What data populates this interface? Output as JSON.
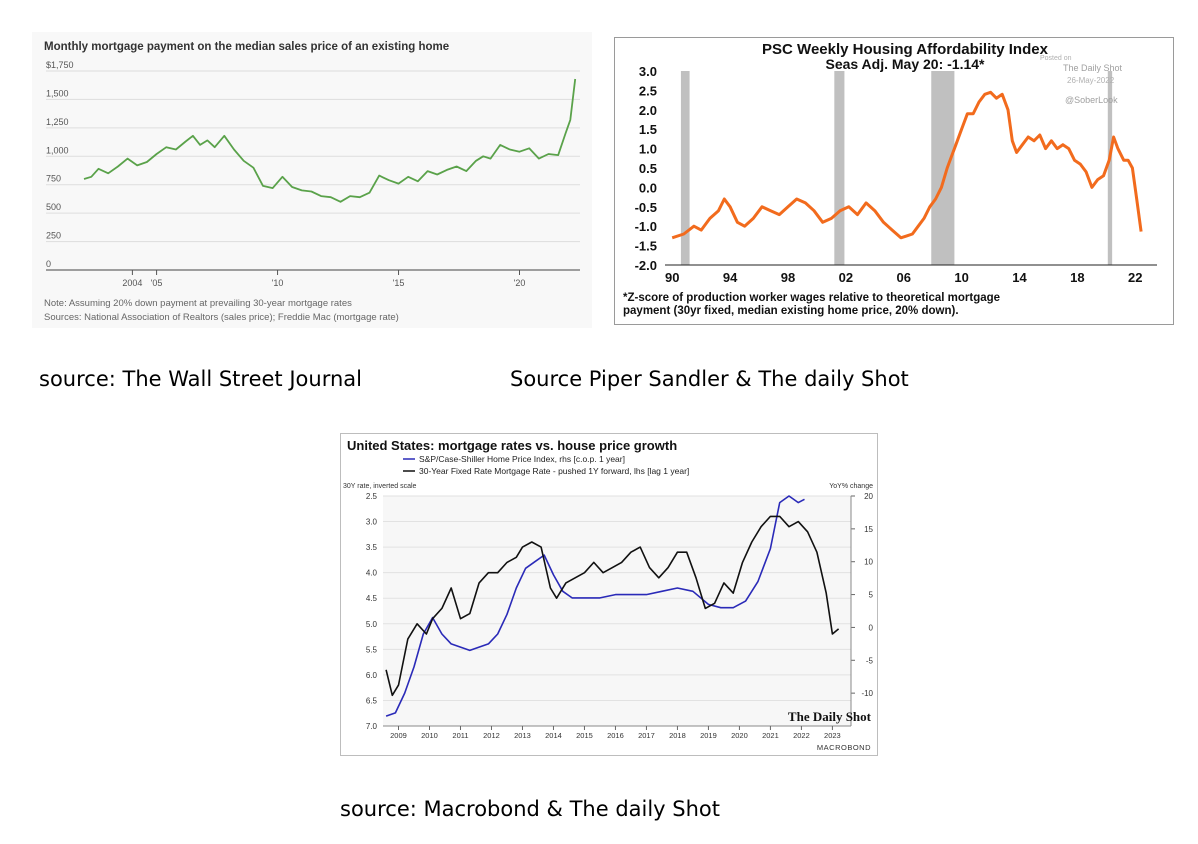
{
  "captions": {
    "wsj": "source: The Wall Street Journal",
    "psc": "Source Piper Sandler & The daily Shot",
    "macrobond": "source: Macrobond & The daily Shot"
  },
  "colors": {
    "wsj_line": "#5aa24a",
    "psc_line": "#f26b1d",
    "psc_shade": "#c0c0c0",
    "mb_blue": "#2a2ab8",
    "mb_black": "#111111"
  },
  "chart_data": [
    {
      "id": "wsj",
      "type": "line",
      "title": "Monthly mortgage payment on the median sales price of an existing home",
      "ylim": [
        0,
        1750
      ],
      "yticks": [
        {
          "v": 0,
          "label": "0"
        },
        {
          "v": 250,
          "label": "250"
        },
        {
          "v": 500,
          "label": "500"
        },
        {
          "v": 750,
          "label": "750"
        },
        {
          "v": 1000,
          "label": "1,000"
        },
        {
          "v": 1250,
          "label": "1,250"
        },
        {
          "v": 1500,
          "label": "1,500"
        },
        {
          "v": 1750,
          "label": "$1,750"
        }
      ],
      "xlim": [
        2002,
        2022.5
      ],
      "xticks": [
        {
          "v": 2004,
          "label": "2004"
        },
        {
          "v": 2005,
          "label": "'05"
        },
        {
          "v": 2010,
          "label": "'10"
        },
        {
          "v": 2015,
          "label": "'15"
        },
        {
          "v": 2020,
          "label": "'20"
        }
      ],
      "grid": true,
      "series": [
        {
          "x": [
            2002.0,
            2002.3,
            2002.6,
            2003.0,
            2003.4,
            2003.8,
            2004.2,
            2004.6,
            2005.0,
            2005.4,
            2005.8,
            2006.2,
            2006.5,
            2006.8,
            2007.1,
            2007.4,
            2007.8,
            2008.2,
            2008.6,
            2009.0,
            2009.4,
            2009.8,
            2010.2,
            2010.6,
            2011.0,
            2011.4,
            2011.8,
            2012.2,
            2012.6,
            2013.0,
            2013.4,
            2013.8,
            2014.2,
            2014.6,
            2015.0,
            2015.4,
            2015.8,
            2016.2,
            2016.6,
            2017.0,
            2017.4,
            2017.8,
            2018.2,
            2018.5,
            2018.8,
            2019.2,
            2019.6,
            2020.0,
            2020.4,
            2020.8,
            2021.2,
            2021.6,
            2021.9,
            2022.1,
            2022.3
          ],
          "y": [
            800,
            820,
            890,
            850,
            910,
            980,
            920,
            950,
            1020,
            1080,
            1060,
            1130,
            1180,
            1100,
            1140,
            1080,
            1180,
            1060,
            960,
            900,
            740,
            720,
            820,
            730,
            700,
            690,
            650,
            640,
            600,
            650,
            640,
            680,
            830,
            790,
            760,
            820,
            780,
            870,
            840,
            880,
            910,
            870,
            960,
            1000,
            980,
            1100,
            1060,
            1040,
            1070,
            980,
            1020,
            1010,
            1200,
            1320,
            1680
          ]
        }
      ],
      "notes": [
        "Note: Assuming 20% down payment at prevailing 30-year mortgage rates",
        "Sources: National Association of Realtors (sales price); Freddie Mac (mortgage rate)"
      ]
    },
    {
      "id": "psc",
      "type": "line",
      "title": "PSC Weekly Housing Affordability Index",
      "subtitle": "Seas Adj.  May 20: -1.14*",
      "watermark": [
        "Posted on",
        "The Daily Shot",
        "26-May-2022",
        "@SoberLook"
      ],
      "ylim": [
        -2.0,
        3.0
      ],
      "yticks": [
        {
          "v": 3.0,
          "label": "3.0"
        },
        {
          "v": 2.5,
          "label": "2.5"
        },
        {
          "v": 2.0,
          "label": "2.0"
        },
        {
          "v": 1.5,
          "label": "1.5"
        },
        {
          "v": 1.0,
          "label": "1.0"
        },
        {
          "v": 0.5,
          "label": "0.5"
        },
        {
          "v": 0.0,
          "label": "0.0"
        },
        {
          "v": -0.5,
          "label": "-0.5"
        },
        {
          "v": -1.0,
          "label": "-1.0"
        },
        {
          "v": -1.5,
          "label": "-1.5"
        },
        {
          "v": -2.0,
          "label": "-2.0"
        }
      ],
      "xlim": [
        1989.5,
        2023.5
      ],
      "xticks": [
        {
          "v": 1990,
          "label": "90"
        },
        {
          "v": 1994,
          "label": "94"
        },
        {
          "v": 1998,
          "label": "98"
        },
        {
          "v": 2002,
          "label": "02"
        },
        {
          "v": 2006,
          "label": "06"
        },
        {
          "v": 2010,
          "label": "10"
        },
        {
          "v": 2014,
          "label": "14"
        },
        {
          "v": 2018,
          "label": "18"
        },
        {
          "v": 2022,
          "label": "22"
        }
      ],
      "recessions": [
        [
          1990.6,
          1991.2
        ],
        [
          2001.2,
          2001.9
        ],
        [
          2007.9,
          2009.5
        ],
        [
          2020.1,
          2020.4
        ]
      ],
      "series": [
        {
          "x": [
            1990.0,
            1990.8,
            1991.5,
            1992.0,
            1992.6,
            1993.2,
            1993.6,
            1994.0,
            1994.5,
            1995.0,
            1995.6,
            1996.2,
            1996.8,
            1997.4,
            1998.0,
            1998.6,
            1999.2,
            1999.8,
            2000.4,
            2001.0,
            2001.6,
            2002.2,
            2002.8,
            2003.4,
            2004.0,
            2004.6,
            2005.2,
            2005.8,
            2006.2,
            2006.6,
            2007.0,
            2007.4,
            2007.8,
            2008.2,
            2008.6,
            2009.0,
            2009.3,
            2009.6,
            2010.0,
            2010.4,
            2010.8,
            2011.2,
            2011.6,
            2012.0,
            2012.4,
            2012.8,
            2013.2,
            2013.5,
            2013.8,
            2014.2,
            2014.6,
            2015.0,
            2015.4,
            2015.8,
            2016.2,
            2016.6,
            2017.0,
            2017.4,
            2017.8,
            2018.2,
            2018.6,
            2019.0,
            2019.4,
            2019.8,
            2020.2,
            2020.5,
            2020.8,
            2021.2,
            2021.5,
            2021.8,
            2022.1,
            2022.4
          ],
          "y": [
            -1.3,
            -1.2,
            -1.0,
            -1.1,
            -0.8,
            -0.6,
            -0.3,
            -0.5,
            -0.9,
            -1.0,
            -0.8,
            -0.5,
            -0.6,
            -0.7,
            -0.5,
            -0.3,
            -0.4,
            -0.6,
            -0.9,
            -0.8,
            -0.6,
            -0.5,
            -0.7,
            -0.4,
            -0.6,
            -0.9,
            -1.1,
            -1.3,
            -1.25,
            -1.2,
            -1.0,
            -0.8,
            -0.5,
            -0.3,
            0.0,
            0.5,
            0.8,
            1.1,
            1.5,
            1.9,
            1.9,
            2.2,
            2.4,
            2.45,
            2.3,
            2.4,
            2.0,
            1.2,
            0.9,
            1.1,
            1.3,
            1.2,
            1.35,
            1.0,
            1.2,
            1.0,
            1.1,
            1.0,
            0.7,
            0.6,
            0.4,
            0.0,
            0.2,
            0.3,
            0.7,
            1.3,
            1.0,
            0.7,
            0.7,
            0.5,
            -0.3,
            -1.14
          ]
        }
      ],
      "footnote": [
        "*Z-score of production worker wages relative to theoretical mortgage",
        "payment (30yr fixed, median existing home price, 20% down)."
      ]
    },
    {
      "id": "macrobond",
      "type": "line",
      "title": "United States: mortgage rates vs. house price growth",
      "left_axis_label": "30Y rate, inverted scale",
      "right_axis_label": "YoY% change",
      "brand": "The Daily Shot",
      "source": "MACROBOND",
      "ylim_left": [
        7.0,
        2.5
      ],
      "ylim_right": [
        -15,
        20
      ],
      "xlim": [
        2008.5,
        2023.6
      ],
      "yticks_left": [
        {
          "v": 2.5,
          "label": "2.5"
        },
        {
          "v": 3.0,
          "label": "3.0"
        },
        {
          "v": 3.5,
          "label": "3.5"
        },
        {
          "v": 4.0,
          "label": "4.0"
        },
        {
          "v": 4.5,
          "label": "4.5"
        },
        {
          "v": 5.0,
          "label": "5.0"
        },
        {
          "v": 5.5,
          "label": "5.5"
        },
        {
          "v": 6.0,
          "label": "6.0"
        },
        {
          "v": 6.5,
          "label": "6.5"
        },
        {
          "v": 7.0,
          "label": "7.0"
        }
      ],
      "yticks_right": [
        {
          "v": 20,
          "label": "20"
        },
        {
          "v": 15,
          "label": "15"
        },
        {
          "v": 10,
          "label": "10"
        },
        {
          "v": 5,
          "label": "5"
        },
        {
          "v": 0,
          "label": "0"
        },
        {
          "v": -5,
          "label": "-5"
        },
        {
          "v": -10,
          "label": "-10"
        }
      ],
      "xticks": [
        {
          "v": 2009,
          "label": "2009"
        },
        {
          "v": 2010,
          "label": "2010"
        },
        {
          "v": 2011,
          "label": "2011"
        },
        {
          "v": 2012,
          "label": "2012"
        },
        {
          "v": 2013,
          "label": "2013"
        },
        {
          "v": 2014,
          "label": "2014"
        },
        {
          "v": 2015,
          "label": "2015"
        },
        {
          "v": 2016,
          "label": "2016"
        },
        {
          "v": 2017,
          "label": "2017"
        },
        {
          "v": 2018,
          "label": "2018"
        },
        {
          "v": 2019,
          "label": "2019"
        },
        {
          "v": 2020,
          "label": "2020"
        },
        {
          "v": 2021,
          "label": "2021"
        },
        {
          "v": 2022,
          "label": "2022"
        },
        {
          "v": 2023,
          "label": "2023"
        }
      ],
      "series": [
        {
          "name": "S&P/Case-Shiller Home Price Index, rhs [c.o.p. 1 year]",
          "axis": "right",
          "x": [
            2008.6,
            2008.9,
            2009.2,
            2009.5,
            2009.8,
            2010.1,
            2010.4,
            2010.7,
            2011.0,
            2011.3,
            2011.6,
            2011.9,
            2012.2,
            2012.5,
            2012.8,
            2013.1,
            2013.4,
            2013.7,
            2014.0,
            2014.3,
            2014.6,
            2015.0,
            2015.5,
            2016.0,
            2016.5,
            2017.0,
            2017.5,
            2018.0,
            2018.5,
            2019.0,
            2019.4,
            2019.8,
            2020.2,
            2020.6,
            2021.0,
            2021.3,
            2021.6,
            2021.9,
            2022.1
          ],
          "y": [
            -13.5,
            -13.0,
            -10.0,
            -6.0,
            -1.0,
            1.5,
            -1.0,
            -2.5,
            -3.0,
            -3.5,
            -3.0,
            -2.5,
            -1.0,
            2.0,
            6.0,
            9.0,
            10.0,
            11.0,
            8.0,
            5.5,
            4.5,
            4.5,
            4.5,
            5.0,
            5.0,
            5.0,
            5.5,
            6.0,
            5.5,
            3.5,
            3.0,
            3.0,
            4.0,
            7.0,
            12.0,
            19.0,
            20.0,
            19.0,
            19.5
          ]
        },
        {
          "name": "30-Year Fixed Rate Mortgage Rate - pushed 1Y forward, lhs [lag 1 year]",
          "axis": "left",
          "x": [
            2008.6,
            2008.8,
            2009.0,
            2009.3,
            2009.6,
            2009.9,
            2010.1,
            2010.4,
            2010.7,
            2011.0,
            2011.3,
            2011.6,
            2011.9,
            2012.2,
            2012.5,
            2012.8,
            2013.0,
            2013.3,
            2013.6,
            2013.9,
            2014.1,
            2014.4,
            2014.7,
            2015.0,
            2015.3,
            2015.6,
            2015.9,
            2016.2,
            2016.5,
            2016.8,
            2017.1,
            2017.4,
            2017.7,
            2018.0,
            2018.3,
            2018.6,
            2018.9,
            2019.2,
            2019.5,
            2019.8,
            2020.1,
            2020.4,
            2020.7,
            2021.0,
            2021.3,
            2021.6,
            2021.9,
            2022.2,
            2022.5,
            2022.8,
            2023.0,
            2023.2
          ],
          "y": [
            5.9,
            6.4,
            6.2,
            5.3,
            5.0,
            5.2,
            4.9,
            4.7,
            4.3,
            4.9,
            4.8,
            4.2,
            4.0,
            4.0,
            3.8,
            3.7,
            3.5,
            3.4,
            3.5,
            4.3,
            4.5,
            4.2,
            4.1,
            4.0,
            3.8,
            4.0,
            3.9,
            3.8,
            3.6,
            3.5,
            3.9,
            4.1,
            3.9,
            3.6,
            3.6,
            4.1,
            4.7,
            4.6,
            4.2,
            4.4,
            3.8,
            3.4,
            3.1,
            2.9,
            2.9,
            3.1,
            3.0,
            3.2,
            3.6,
            4.4,
            5.2,
            5.1
          ]
        }
      ]
    }
  ]
}
